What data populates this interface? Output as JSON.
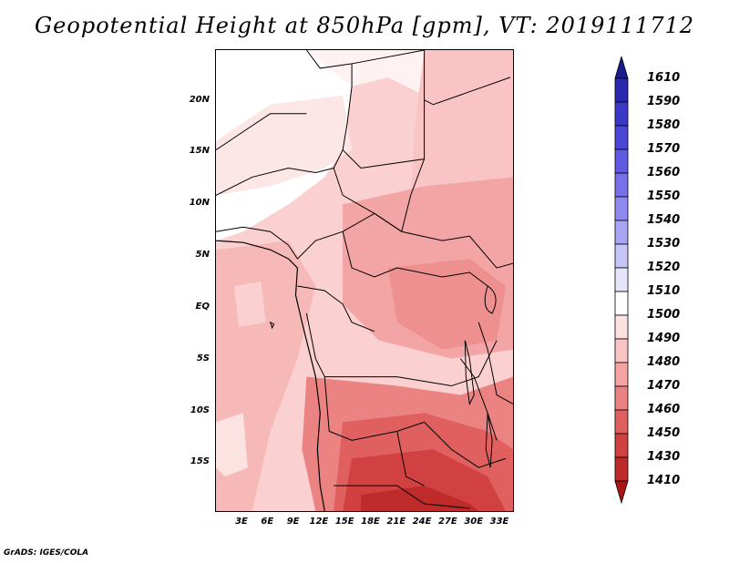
{
  "title": "Geopotential Height at 850hPa [gpm], VT: 2019111712",
  "credit": "GrADS: IGES/COLA",
  "y_ticks": [
    "20N",
    "15N",
    "10N",
    "5N",
    "EQ",
    "5S",
    "10S",
    "15S"
  ],
  "x_ticks": [
    "3E",
    "6E",
    "9E",
    "12E",
    "15E",
    "18E",
    "21E",
    "24E",
    "27E",
    "30E",
    "33E"
  ],
  "colorbar": {
    "levels": [
      "1610",
      "1590",
      "1580",
      "1570",
      "1560",
      "1550",
      "1540",
      "1530",
      "1520",
      "1510",
      "1500",
      "1490",
      "1480",
      "1470",
      "1460",
      "1450",
      "1430",
      "1410"
    ],
    "colors": [
      "#1b1a8c",
      "#2a28b0",
      "#3b37c8",
      "#4b46d8",
      "#5f5ae2",
      "#7670ea",
      "#8f8af0",
      "#aaa6f5",
      "#c8c5f8",
      "#e6e5fc",
      "#ffffff",
      "#fde2e2",
      "#fbc4c4",
      "#f5a3a3",
      "#ec8383",
      "#e06060",
      "#d14141",
      "#bf2a2a",
      "#a81616"
    ]
  },
  "chart_data": {
    "type": "heatmap",
    "title": "Geopotential Height at 850hPa [gpm], VT: 2019111712",
    "variable": "Geopotential Height at 850hPa",
    "units": "gpm",
    "valid_time": "2019111712",
    "lon_range": [
      0,
      35
    ],
    "lat_range": [
      -20,
      25
    ],
    "x_ticks": [
      "3E",
      "6E",
      "9E",
      "12E",
      "15E",
      "18E",
      "21E",
      "24E",
      "27E",
      "30E",
      "33E"
    ],
    "y_ticks": [
      "20N",
      "15N",
      "10N",
      "5N",
      "EQ",
      "5S",
      "10S",
      "15S"
    ],
    "levels": [
      1410,
      1430,
      1450,
      1460,
      1470,
      1480,
      1490,
      1500,
      1510,
      1520,
      1530,
      1540,
      1550,
      1560,
      1570,
      1580,
      1590,
      1610
    ]
  }
}
